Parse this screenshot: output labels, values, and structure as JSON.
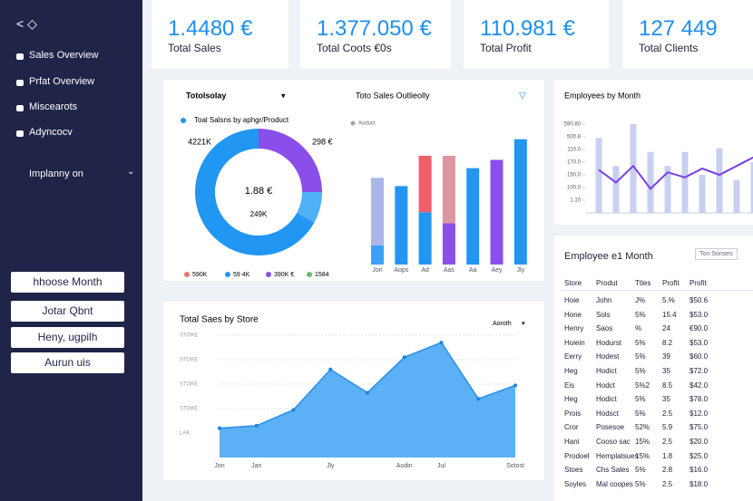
{
  "sidebar": {
    "items": [
      "Sales Overview",
      "Prfat Overview",
      "Miscearots",
      "Adyncocv"
    ],
    "dropdown": "Implanny on",
    "buttons": [
      "hhoose Month",
      "Jotar Qbnt",
      "Heny, ugpilh",
      "Aurun uis"
    ]
  },
  "kpis": [
    {
      "value": "1.4480 €",
      "label": "Total Sales"
    },
    {
      "value": "1.377.050 €",
      "label": "Total Coots €0s"
    },
    {
      "value": "110.981 €",
      "label": "Total Profit"
    },
    {
      "value": "127 449",
      "label": "Total Clients"
    }
  ],
  "chart_data": [
    {
      "type": "pie",
      "title": "Totolsolay",
      "subtitle": "Toal Salsns by aphgr/Product",
      "center_value": "1.88 €",
      "center_label": "249K",
      "callouts": [
        "4221K",
        "298 €"
      ],
      "values": [
        25,
        8,
        67
      ],
      "colors": [
        "#8a4eea",
        "#4fb0f7",
        "#2196f3"
      ],
      "legend": [
        {
          "name": "590K",
          "color": "#e57373"
        },
        {
          "name": "59 4K",
          "color": "#2196f3"
        },
        {
          "name": "390K €",
          "color": "#8a4eea"
        },
        {
          "name": "1584",
          "color": "#66bb6a"
        }
      ]
    },
    {
      "type": "bar",
      "title": "Toto Sales Outlieolly",
      "legend_label": "Aoduct",
      "categories": [
        "Jon",
        "Aops",
        "Ad",
        "Aas",
        "Aa",
        "Aey",
        "Jly"
      ],
      "series": [
        {
          "values": [
            14,
            57,
            38,
            30,
            70,
            76,
            91
          ],
          "colors": [
            "#3aa2f6",
            "#2196f3",
            "#2196f3",
            "#8a4eea",
            "#2196f3",
            "#8a4eea",
            "#2196f3"
          ]
        },
        {
          "values": [
            49,
            null,
            41,
            49,
            null,
            null,
            null
          ],
          "colors": [
            "#aab6e9",
            null,
            "#ef5f6b",
            "#dc979f",
            null,
            null,
            null
          ]
        }
      ],
      "ylim": [
        0,
        100
      ]
    },
    {
      "type": "combo",
      "title": "Employees by Month",
      "categories": [
        null,
        null,
        null,
        null,
        null,
        null,
        null,
        null,
        null,
        null
      ],
      "series": [
        {
          "type": "bar",
          "color": "#c7d0f1",
          "values": [
            5.9,
            3.7,
            7.0,
            4.8,
            3.7,
            4.8,
            3.0,
            5.1,
            2.6,
            4.0
          ]
        },
        {
          "type": "line",
          "color": "#7b3fe4",
          "values": [
            3.4,
            2.4,
            3.7,
            1.9,
            3.2,
            2.8,
            3.5,
            3.0,
            3.7,
            4.4
          ]
        }
      ],
      "ylim": [
        0,
        8
      ],
      "yticks": [
        {
          "value": 7,
          "label": "590.80"
        },
        {
          "value": 6,
          "label": "500.8"
        },
        {
          "value": 5,
          "label": "110.0"
        },
        {
          "value": 4,
          "label": "170.0"
        },
        {
          "value": 3,
          "label": "150.0"
        },
        {
          "value": 2,
          "label": "100.0"
        },
        {
          "value": 1,
          "label": "1.10"
        }
      ]
    },
    {
      "type": "area",
      "title": "Total Saes by Store",
      "filter": "Aoroth",
      "categories": [
        "Jon",
        "Jan",
        null,
        "Jly",
        null,
        "Aodin",
        "Jul",
        null,
        "Sotost"
      ],
      "values": [
        24,
        26,
        39,
        72,
        53,
        82,
        94,
        48,
        59
      ],
      "color": "#4aa8f5",
      "ylim": [
        0,
        100
      ],
      "yticks": [
        {
          "value": 100,
          "label": "STOKE"
        },
        {
          "value": 80,
          "label": "STOKE"
        },
        {
          "value": 60,
          "label": "STOKE"
        },
        {
          "value": 40,
          "label": "STOKE"
        },
        {
          "value": 20,
          "label": "LAK"
        }
      ],
      "grid": true
    }
  ],
  "table": {
    "title": "Employee e1 Month",
    "filter": "Ton Sonses",
    "columns": [
      "Store",
      "Produt",
      "Ttles",
      "Profit",
      "Profit"
    ],
    "rows": [
      [
        "Hoie",
        "John",
        "J%",
        "5.%",
        "$50.6"
      ],
      [
        "Hone",
        "Sols",
        "5%",
        "15.4",
        "$53.0"
      ],
      [
        "Henry",
        "Saos",
        "%",
        "24",
        "€90.0"
      ],
      [
        "Hoiein",
        "Hodurst",
        "5%",
        "8.2",
        "$53.0"
      ],
      [
        "Eerry",
        "Hodest",
        "5%",
        "39",
        "$60.0"
      ],
      [
        "Heg",
        "Hodict",
        "5%",
        "35",
        "$72.0"
      ],
      [
        "Eis",
        "Hodct",
        "5%2",
        "8.5",
        "$42.0"
      ],
      [
        "Heg",
        "Hodict",
        "5%",
        "35",
        "$78.0"
      ],
      [
        "Prois",
        "Hodsct",
        "5%",
        "2.5",
        "$12.0"
      ],
      [
        "Cror",
        "Posesoe",
        "52%",
        "5.9",
        "$75.0"
      ],
      [
        "Hani",
        "Cooso sac",
        "15%",
        "2.5",
        "$20.0"
      ],
      [
        "Prodoel",
        "Hemplatsues",
        "15%",
        "1.8",
        "$25.0"
      ],
      [
        "Stoes",
        "Chs Sales",
        "5%",
        "2.8",
        "$16.0"
      ],
      [
        "Soyles",
        "Mal coopes",
        "5%",
        "2.5",
        "$18.0"
      ]
    ]
  }
}
